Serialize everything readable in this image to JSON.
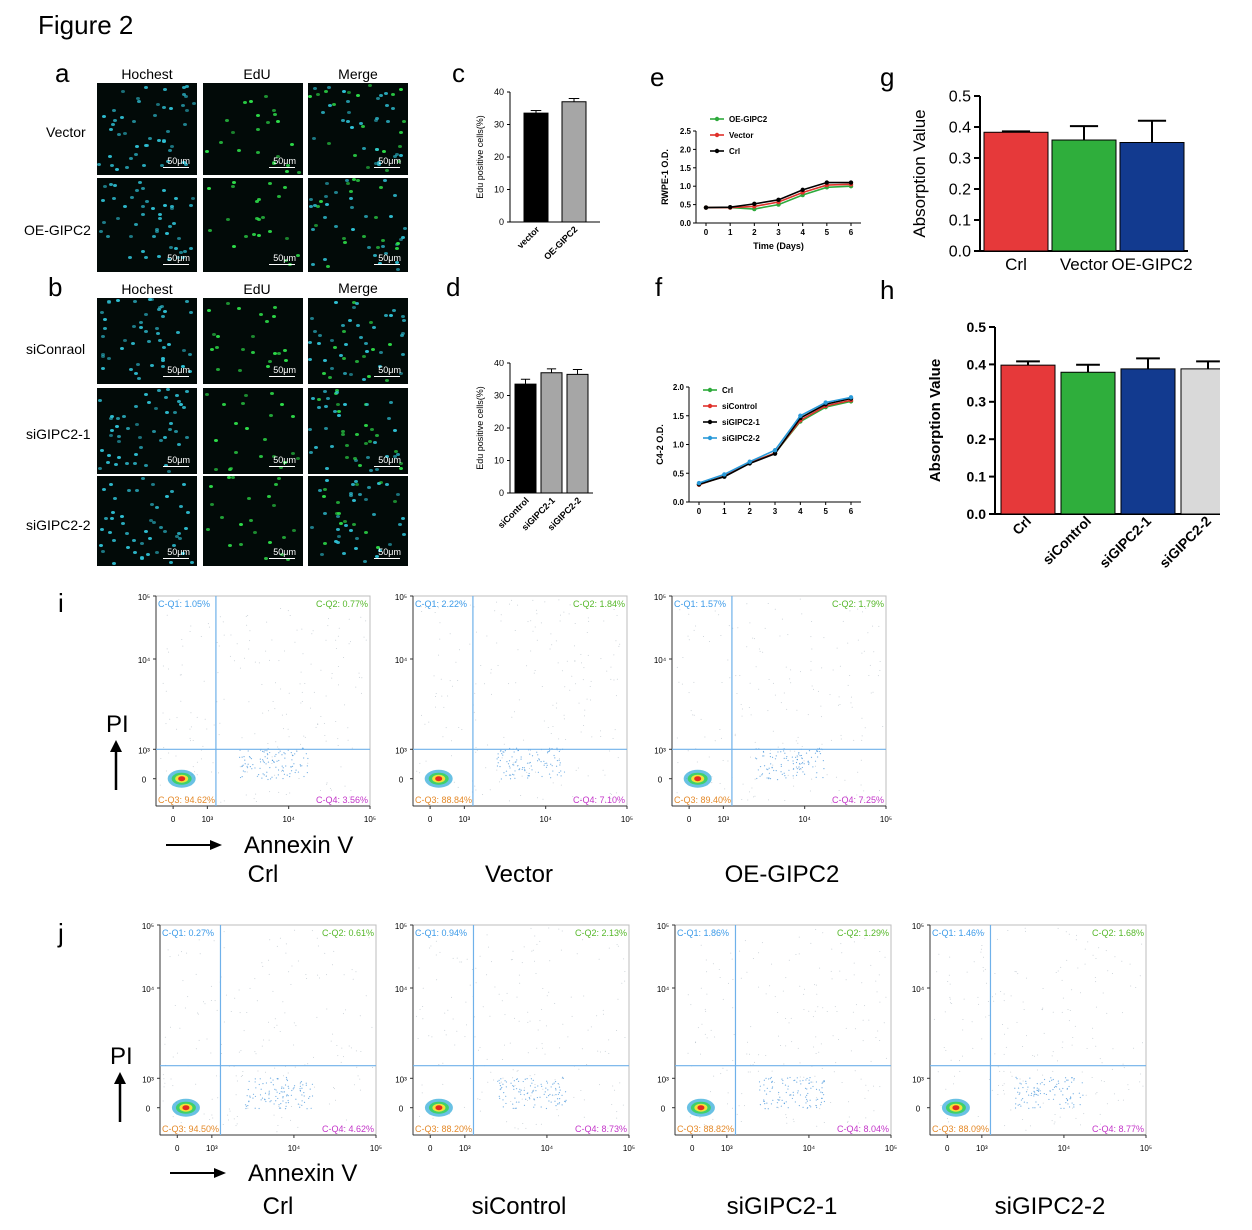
{
  "figure_title": "Figure 2",
  "panels": {
    "a": "a",
    "b": "b",
    "c": "c",
    "d": "d",
    "e": "e",
    "f": "f",
    "g": "g",
    "h": "h",
    "i": "i",
    "j": "j"
  },
  "micrographs": {
    "col_headers_a": [
      "Hochest",
      "EdU",
      "Merge"
    ],
    "col_headers_b": [
      "Hochest",
      "EdU",
      "Merge"
    ],
    "rows_a": [
      "Vector",
      "OE-GIPC2"
    ],
    "rows_b": [
      "siConraol",
      "siGIPC2-1",
      "siGIPC2-2"
    ],
    "scale_label": "50μm",
    "colors": {
      "hoechst": "#2fc2d6",
      "edu": "#2ee04a",
      "background": "#020a08"
    }
  },
  "chart_data": [
    {
      "panel": "c",
      "type": "bar",
      "categories": [
        "vector",
        "OE-GIPC2"
      ],
      "values": [
        33.5,
        37
      ],
      "errors": [
        0.8,
        1.0
      ],
      "colors": [
        "#000000",
        "#a6a6a6"
      ],
      "ylabel": "Edu positive cells(%)",
      "ylim": [
        0,
        40
      ],
      "yticks": [
        0,
        10,
        20,
        30,
        40
      ]
    },
    {
      "panel": "d",
      "type": "bar",
      "categories": [
        "siControl",
        "siGIPC2-1",
        "siGIPC2-2"
      ],
      "values": [
        33.5,
        37,
        36.5
      ],
      "errors": [
        1.5,
        1.2,
        1.5
      ],
      "colors": [
        "#000000",
        "#a6a6a6",
        "#a6a6a6"
      ],
      "ylabel": "Edu positive cells(%)",
      "ylim": [
        0,
        40
      ],
      "yticks": [
        0,
        10,
        20,
        30,
        40
      ]
    },
    {
      "panel": "e",
      "type": "line",
      "x": [
        0,
        1,
        2,
        3,
        4,
        5,
        6
      ],
      "series": [
        {
          "name": "OE-GIPC2",
          "color": "#2eaa3c",
          "values": [
            0.42,
            0.42,
            0.38,
            0.5,
            0.76,
            0.97,
            1.0
          ]
        },
        {
          "name": "Vector",
          "color": "#e0312b",
          "values": [
            0.42,
            0.42,
            0.45,
            0.57,
            0.83,
            1.03,
            1.05
          ]
        },
        {
          "name": "Crl",
          "color": "#000000",
          "values": [
            0.42,
            0.43,
            0.52,
            0.63,
            0.9,
            1.1,
            1.1
          ]
        }
      ],
      "xlabel": "Time (Days)",
      "ylabel": "RWPE-1 O.D.",
      "ylim": [
        0,
        2.5
      ],
      "yticks": [
        "0.0",
        "0.5",
        "1.0",
        "1.5",
        "2.0",
        "2.5"
      ],
      "legend": "top-left"
    },
    {
      "panel": "f",
      "type": "line",
      "x": [
        0,
        1,
        2,
        3,
        4,
        5,
        6
      ],
      "series": [
        {
          "name": "Crl",
          "color": "#2eaa3c",
          "values": [
            0.3,
            0.45,
            0.68,
            0.85,
            1.4,
            1.65,
            1.75
          ]
        },
        {
          "name": "siControl",
          "color": "#e0312b",
          "values": [
            0.3,
            0.45,
            0.68,
            0.85,
            1.42,
            1.67,
            1.77
          ]
        },
        {
          "name": "siGIPC2-1",
          "color": "#000000",
          "values": [
            0.31,
            0.44,
            0.67,
            0.84,
            1.46,
            1.7,
            1.8
          ]
        },
        {
          "name": "siGIPC2-2",
          "color": "#2a9ad9",
          "values": [
            0.33,
            0.48,
            0.7,
            0.9,
            1.5,
            1.73,
            1.82
          ]
        }
      ],
      "xlabel": "",
      "ylabel": "C4-2 O.D.",
      "ylim": [
        0,
        2.0
      ],
      "yticks": [
        "0.0",
        "0.5",
        "1.0",
        "1.5",
        "2.0"
      ],
      "legend": "top-left"
    },
    {
      "panel": "g",
      "type": "bar",
      "categories": [
        "Crl",
        "Vector",
        "OE-GIPC2"
      ],
      "values": [
        0.383,
        0.358,
        0.35
      ],
      "errors": [
        0.003,
        0.045,
        0.07
      ],
      "colors": [
        "#e6393a",
        "#2fae3c",
        "#123a8f"
      ],
      "ylabel": "Absorption Value",
      "ylim": [
        0,
        0.5
      ],
      "yticks": [
        "0.0",
        "0.1",
        "0.2",
        "0.3",
        "0.4",
        "0.5"
      ]
    },
    {
      "panel": "h",
      "type": "bar",
      "categories": [
        "Crl",
        "siControl",
        "siGIPC2-1",
        "siGIPC2-2"
      ],
      "values": [
        0.398,
        0.379,
        0.388,
        0.388
      ],
      "errors": [
        0.01,
        0.02,
        0.028,
        0.02
      ],
      "colors": [
        "#e6393a",
        "#2fae3c",
        "#123a8f",
        "#d9d9d9"
      ],
      "ylabel": "Absorption Value",
      "ylim": [
        0,
        0.5
      ],
      "yticks": [
        "0.0",
        "0.1",
        "0.2",
        "0.3",
        "0.4",
        "0.5"
      ]
    }
  ],
  "flow": {
    "axis_pi": "PI",
    "axis_annexin": "Annexin V",
    "x_ticks": [
      "0",
      "10³",
      "10⁴",
      "10⁵"
    ],
    "y_ticks": [
      "10⁵",
      "10⁴",
      "10³",
      "0"
    ],
    "row_i": [
      {
        "name": "Crl",
        "q1": "C-Q1: 1.05%",
        "q2": "C-Q2: 0.77%",
        "q3": "C-Q3: 94.62%",
        "q4": "C-Q4: 3.56%"
      },
      {
        "name": "Vector",
        "q1": "C-Q1: 2.22%",
        "q2": "C-Q2: 1.84%",
        "q3": "C-Q3: 88.84%",
        "q4": "C-Q4: 7.10%"
      },
      {
        "name": "OE-GIPC2",
        "q1": "C-Q1: 1.57%",
        "q2": "C-Q2: 1.79%",
        "q3": "C-Q3: 89.40%",
        "q4": "C-Q4: 7.25%"
      }
    ],
    "row_j": [
      {
        "name": "Crl",
        "q1": "C-Q1: 0.27%",
        "q2": "C-Q2: 0.61%",
        "q3": "C-Q3: 94.50%",
        "q4": "C-Q4: 4.62%"
      },
      {
        "name": "siControl",
        "q1": "C-Q1: 0.94%",
        "q2": "C-Q2: 2.13%",
        "q3": "C-Q3: 88.20%",
        "q4": "C-Q4: 8.73%"
      },
      {
        "name": "siGIPC2-1",
        "q1": "C-Q1: 1.86%",
        "q2": "C-Q2: 1.29%",
        "q3": "C-Q3: 88.82%",
        "q4": "C-Q4: 8.04%"
      },
      {
        "name": "siGIPC2-2",
        "q1": "C-Q1: 1.46%",
        "q2": "C-Q2: 1.68%",
        "q3": "C-Q3: 88.09%",
        "q4": "C-Q4: 8.77%"
      }
    ],
    "colors": {
      "q1": "#3d9be9",
      "q2": "#56b82a",
      "q3": "#e58a2a",
      "q4": "#c435c9",
      "gate": "#6fb1ea"
    }
  }
}
